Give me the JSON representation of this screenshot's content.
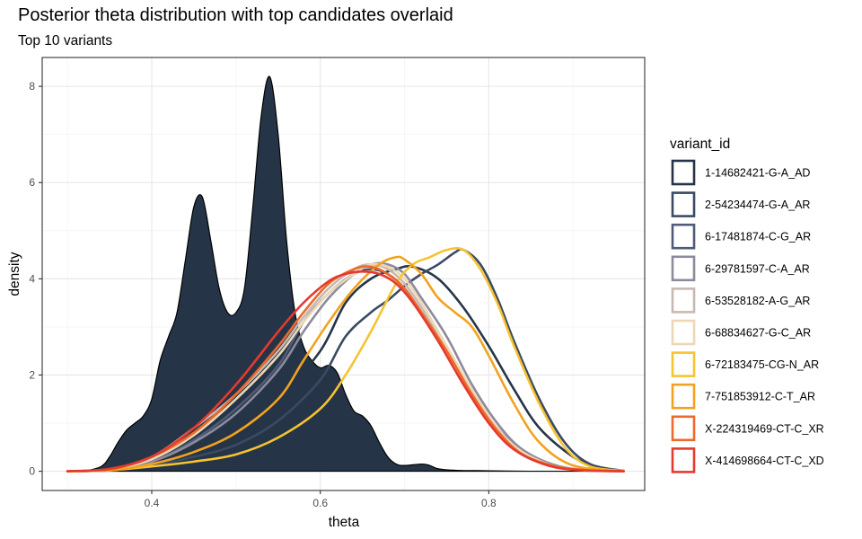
{
  "chart_data": {
    "type": "area",
    "title": "Posterior theta distribution with top candidates overlaid",
    "subtitle": "Top 10 variants",
    "xlabel": "theta",
    "ylabel": "density",
    "xlim": [
      0.27,
      0.985
    ],
    "ylim": [
      -0.4,
      8.6
    ],
    "xticks": [
      0.4,
      0.6,
      0.8
    ],
    "xtick_labels": [
      "0.4",
      "0.6",
      "0.8"
    ],
    "yticks": [
      0,
      2,
      4,
      6,
      8
    ],
    "ytick_labels": [
      "0",
      "2",
      "4",
      "6",
      "8"
    ],
    "grid": true,
    "legend": {
      "title": "variant_id",
      "placement": "right"
    },
    "background_density": {
      "fill": "#253547",
      "x": [
        0.3,
        0.32,
        0.34,
        0.35,
        0.36,
        0.37,
        0.38,
        0.39,
        0.4,
        0.41,
        0.42,
        0.43,
        0.44,
        0.45,
        0.46,
        0.47,
        0.48,
        0.49,
        0.5,
        0.51,
        0.52,
        0.53,
        0.54,
        0.55,
        0.56,
        0.57,
        0.58,
        0.59,
        0.6,
        0.61,
        0.62,
        0.63,
        0.64,
        0.65,
        0.66,
        0.67,
        0.68,
        0.69,
        0.7,
        0.72,
        0.73,
        0.74,
        0.76,
        0.8,
        0.85,
        0.9,
        0.96
      ],
      "y": [
        0,
        0.01,
        0.1,
        0.3,
        0.6,
        0.85,
        1.0,
        1.15,
        1.5,
        2.3,
        2.8,
        3.3,
        4.4,
        5.5,
        5.7,
        4.8,
        3.8,
        3.3,
        3.3,
        3.8,
        5.5,
        7.4,
        8.2,
        7.0,
        4.8,
        3.3,
        2.6,
        2.3,
        2.15,
        2.2,
        2.05,
        1.6,
        1.25,
        1.15,
        0.95,
        0.6,
        0.3,
        0.15,
        0.12,
        0.15,
        0.12,
        0.05,
        0.02,
        0.01,
        0,
        0,
        0
      ]
    },
    "series": [
      {
        "name": "1-14682421-G-A_AD",
        "color": "#253547",
        "x": [
          0.3,
          0.35,
          0.4,
          0.45,
          0.5,
          0.55,
          0.6,
          0.63,
          0.66,
          0.69,
          0.71,
          0.74,
          0.77,
          0.8,
          0.83,
          0.86,
          0.9,
          0.93,
          0.96
        ],
        "y": [
          0,
          0.02,
          0.15,
          0.35,
          0.75,
          1.5,
          2.5,
          3.5,
          4.0,
          4.2,
          4.25,
          4.0,
          3.4,
          2.6,
          1.7,
          0.9,
          0.3,
          0.08,
          0.01
        ]
      },
      {
        "name": "2-54234474-G-A_AR",
        "color": "#3b4a63",
        "x": [
          0.3,
          0.35,
          0.4,
          0.45,
          0.5,
          0.55,
          0.6,
          0.63,
          0.66,
          0.68,
          0.7,
          0.72,
          0.74,
          0.76,
          0.77,
          0.79,
          0.81,
          0.83,
          0.86,
          0.89,
          0.92,
          0.96
        ],
        "y": [
          0,
          0.02,
          0.12,
          0.3,
          0.55,
          1.05,
          1.9,
          2.8,
          3.3,
          3.55,
          3.85,
          4.1,
          4.3,
          4.55,
          4.6,
          4.3,
          3.6,
          2.7,
          1.5,
          0.6,
          0.15,
          0.01
        ]
      },
      {
        "name": "6-17481874-C-G_AR",
        "color": "#4f5b78",
        "x": [
          0.3,
          0.35,
          0.4,
          0.45,
          0.5,
          0.55,
          0.58,
          0.61,
          0.64,
          0.66,
          0.68,
          0.7,
          0.72,
          0.75,
          0.78,
          0.81,
          0.84,
          0.88,
          0.92,
          0.96
        ],
        "y": [
          0,
          0.03,
          0.2,
          0.65,
          1.3,
          2.2,
          3.1,
          3.7,
          4.1,
          4.2,
          4.1,
          3.8,
          3.3,
          2.5,
          1.6,
          0.9,
          0.4,
          0.1,
          0.02,
          0
        ]
      },
      {
        "name": "6-29781597-C-A_AR",
        "color": "#8e8a9c",
        "x": [
          0.3,
          0.35,
          0.4,
          0.45,
          0.5,
          0.55,
          0.58,
          0.61,
          0.64,
          0.66,
          0.68,
          0.7,
          0.72,
          0.75,
          0.78,
          0.81,
          0.84,
          0.88,
          0.92,
          0.96
        ],
        "y": [
          0,
          0.03,
          0.2,
          0.6,
          1.2,
          2.1,
          2.9,
          3.6,
          4.1,
          4.3,
          4.3,
          4.1,
          3.6,
          2.8,
          1.8,
          1.0,
          0.45,
          0.12,
          0.02,
          0
        ]
      },
      {
        "name": "6-53528182-A-G_AR",
        "color": "#c8b8b2",
        "x": [
          0.3,
          0.35,
          0.4,
          0.45,
          0.5,
          0.55,
          0.58,
          0.61,
          0.64,
          0.66,
          0.68,
          0.7,
          0.72,
          0.75,
          0.78,
          0.81,
          0.84,
          0.88,
          0.92,
          0.96
        ],
        "y": [
          0,
          0.04,
          0.3,
          0.9,
          1.6,
          2.5,
          3.2,
          3.8,
          4.2,
          4.3,
          4.2,
          3.9,
          3.4,
          2.5,
          1.6,
          0.85,
          0.35,
          0.1,
          0.02,
          0
        ]
      },
      {
        "name": "6-68834627-G-C_AR",
        "color": "#ecd8b4",
        "x": [
          0.3,
          0.35,
          0.4,
          0.45,
          0.5,
          0.55,
          0.58,
          0.61,
          0.64,
          0.66,
          0.68,
          0.7,
          0.72,
          0.75,
          0.78,
          0.81,
          0.84,
          0.88,
          0.92,
          0.96
        ],
        "y": [
          0,
          0.04,
          0.25,
          0.75,
          1.5,
          2.4,
          3.1,
          3.7,
          4.1,
          4.3,
          4.25,
          4.0,
          3.5,
          2.6,
          1.7,
          0.9,
          0.4,
          0.1,
          0.02,
          0
        ]
      },
      {
        "name": "6-72183475-CG-N_AR",
        "color": "#f7c331",
        "x": [
          0.3,
          0.35,
          0.4,
          0.45,
          0.5,
          0.55,
          0.6,
          0.63,
          0.66,
          0.69,
          0.71,
          0.73,
          0.75,
          0.77,
          0.79,
          0.81,
          0.83,
          0.86,
          0.89,
          0.92,
          0.96
        ],
        "y": [
          0,
          0.02,
          0.1,
          0.2,
          0.35,
          0.7,
          1.3,
          2.0,
          2.9,
          3.9,
          4.3,
          4.45,
          4.6,
          4.6,
          4.2,
          3.5,
          2.6,
          1.4,
          0.5,
          0.1,
          0.01
        ]
      },
      {
        "name": "7-751853912-C-T_AR",
        "color": "#f2a21f",
        "x": [
          0.3,
          0.35,
          0.4,
          0.45,
          0.5,
          0.55,
          0.58,
          0.61,
          0.64,
          0.67,
          0.69,
          0.7,
          0.72,
          0.74,
          0.76,
          0.78,
          0.8,
          0.83,
          0.86,
          0.9,
          0.96
        ],
        "y": [
          0,
          0.02,
          0.15,
          0.4,
          0.8,
          1.5,
          2.3,
          3.1,
          3.8,
          4.3,
          4.45,
          4.4,
          4.1,
          3.6,
          3.3,
          3.0,
          2.4,
          1.4,
          0.6,
          0.12,
          0
        ]
      },
      {
        "name": "X-224319469-CT-C_XR",
        "color": "#ec6a2c",
        "x": [
          0.3,
          0.35,
          0.4,
          0.45,
          0.5,
          0.55,
          0.58,
          0.61,
          0.64,
          0.66,
          0.68,
          0.7,
          0.72,
          0.75,
          0.78,
          0.81,
          0.84,
          0.88,
          0.92,
          0.96
        ],
        "y": [
          0,
          0.04,
          0.3,
          0.8,
          1.6,
          2.6,
          3.3,
          3.9,
          4.2,
          4.25,
          4.1,
          3.8,
          3.3,
          2.5,
          1.6,
          0.85,
          0.35,
          0.1,
          0.02,
          0
        ]
      },
      {
        "name": "X-414698664-CT-C_XD",
        "color": "#e53a2e",
        "x": [
          0.3,
          0.35,
          0.4,
          0.45,
          0.5,
          0.55,
          0.58,
          0.61,
          0.63,
          0.65,
          0.67,
          0.69,
          0.71,
          0.74,
          0.77,
          0.8,
          0.83,
          0.87,
          0.91,
          0.96
        ],
        "y": [
          0,
          0.05,
          0.3,
          0.9,
          1.8,
          2.9,
          3.5,
          3.95,
          4.1,
          4.15,
          4.1,
          3.9,
          3.5,
          2.7,
          1.8,
          1.0,
          0.45,
          0.12,
          0.02,
          0
        ]
      }
    ]
  }
}
